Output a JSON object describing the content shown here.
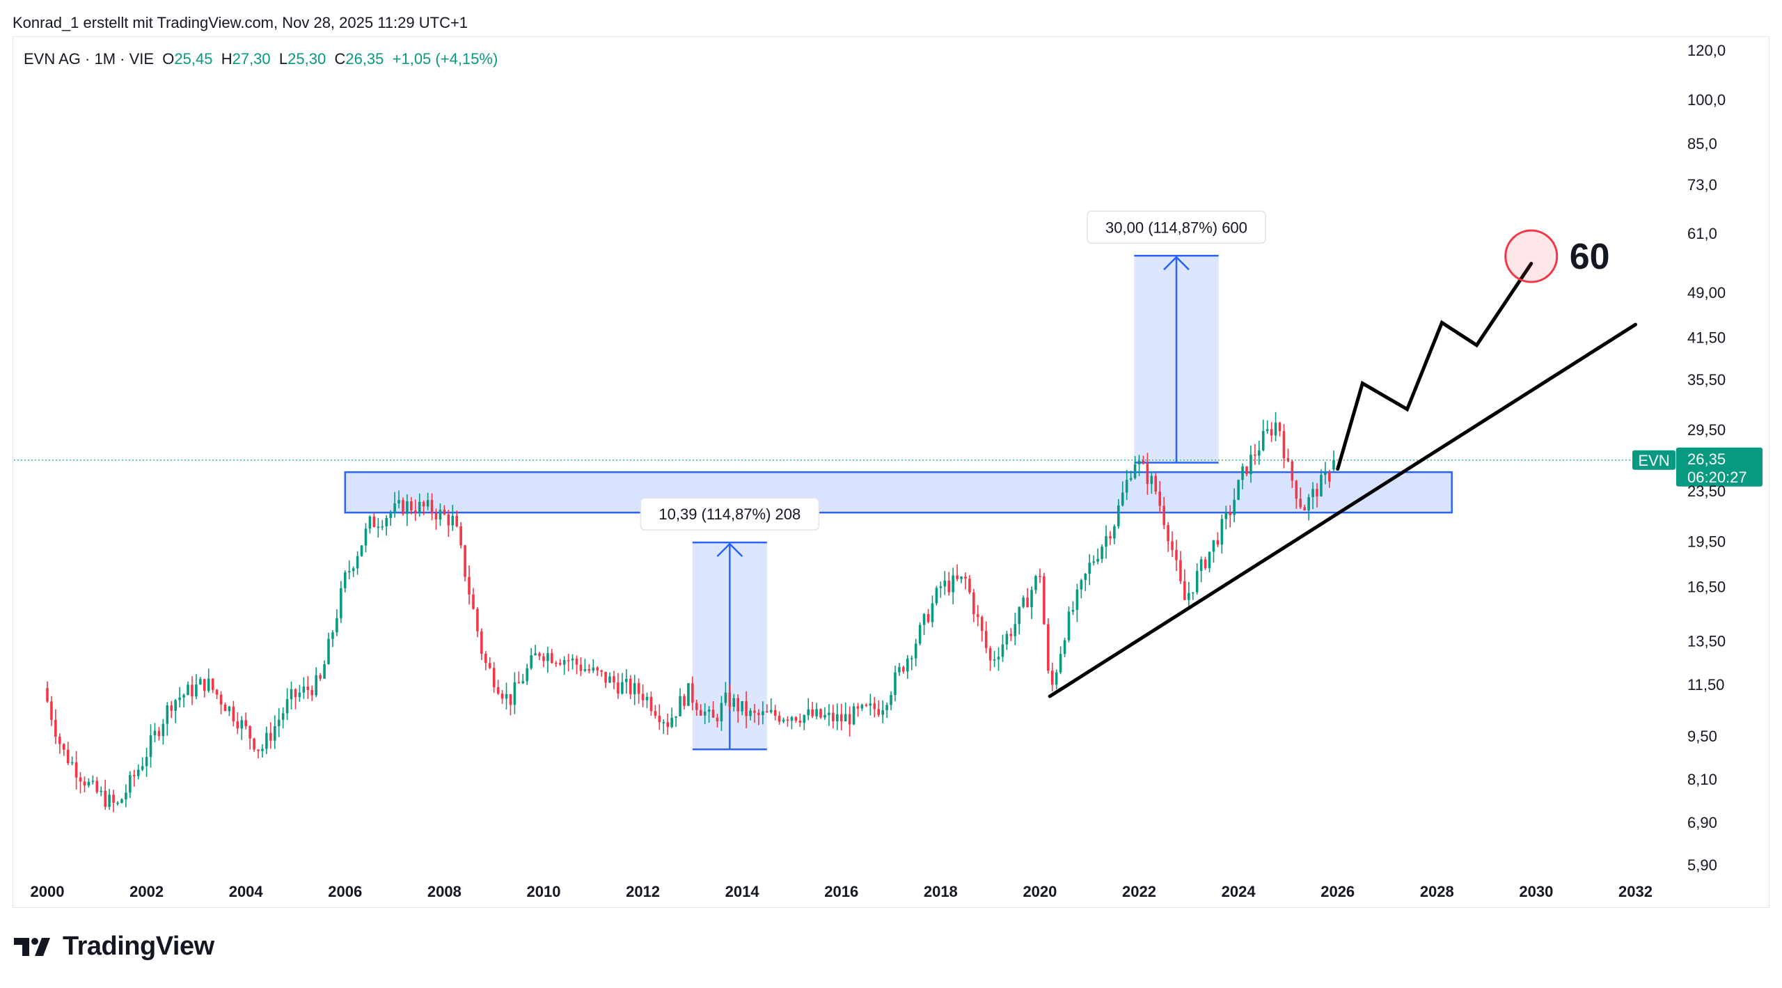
{
  "header": {
    "attribution": "Konrad_1 erstellt mit TradingView.com, Nov 28, 2025 11:29 UTC+1"
  },
  "legend": {
    "symbol": "EVN AG · 1M · VIE",
    "open_label": "O",
    "open": "25,45",
    "high_label": "H",
    "high": "27,30",
    "low_label": "L",
    "low": "25,30",
    "close_label": "C",
    "close": "26,35",
    "change": "+1,05 (+4,15%)"
  },
  "price_tag": {
    "ticker": "EVN",
    "price": "26,35",
    "countdown": "06:20:27"
  },
  "annotations": {
    "measure_large": "30,00 (114,87%) 600",
    "measure_small": "10,39 (114,87%) 208",
    "target_label": "60"
  },
  "branding": {
    "logo_text": "TradingView"
  },
  "colors": {
    "up": "#089981",
    "down": "#f23645",
    "zone": "#2962ff",
    "grid": "#e0e3eb"
  },
  "chart_data": {
    "type": "candlestick",
    "title": "EVN AG · 1M · VIE",
    "scale": "log",
    "ylim": [
      5.5,
      125
    ],
    "xlim": [
      2000,
      2032.4
    ],
    "y_ticks": [
      {
        "v": 120,
        "label": "120,0"
      },
      {
        "v": 100,
        "label": "100,0"
      },
      {
        "v": 85,
        "label": "85,0"
      },
      {
        "v": 73,
        "label": "73,0"
      },
      {
        "v": 61,
        "label": "61,0"
      },
      {
        "v": 49,
        "label": "49,00"
      },
      {
        "v": 41.5,
        "label": "41,50"
      },
      {
        "v": 35.5,
        "label": "35,50"
      },
      {
        "v": 29.5,
        "label": "29,50"
      },
      {
        "v": 23.5,
        "label": "23,50"
      },
      {
        "v": 19.5,
        "label": "19,50"
      },
      {
        "v": 16.5,
        "label": "16,50"
      },
      {
        "v": 13.5,
        "label": "13,50"
      },
      {
        "v": 11.5,
        "label": "11,50"
      },
      {
        "v": 9.5,
        "label": "9,50"
      },
      {
        "v": 8.1,
        "label": "8,10"
      },
      {
        "v": 6.9,
        "label": "6,90"
      },
      {
        "v": 5.9,
        "label": "5,90"
      }
    ],
    "x_ticks": [
      "2000",
      "2002",
      "2004",
      "2006",
      "2008",
      "2010",
      "2012",
      "2014",
      "2016",
      "2018",
      "2020",
      "2022",
      "2024",
      "2026",
      "2028",
      "2030",
      "2032"
    ],
    "anchor_closes": [
      [
        2000.0,
        10.8
      ],
      [
        2000.3,
        9.0
      ],
      [
        2000.9,
        7.8
      ],
      [
        2001.4,
        7.3
      ],
      [
        2001.9,
        8.6
      ],
      [
        2002.5,
        10.8
      ],
      [
        2003.2,
        11.6
      ],
      [
        2003.8,
        10.2
      ],
      [
        2004.3,
        9.0
      ],
      [
        2004.9,
        10.9
      ],
      [
        2005.5,
        11.6
      ],
      [
        2006.0,
        17.0
      ],
      [
        2006.5,
        20.8
      ],
      [
        2007.2,
        22.3
      ],
      [
        2007.7,
        22.0
      ],
      [
        2008.2,
        21.0
      ],
      [
        2008.8,
        12.5
      ],
      [
        2009.3,
        10.8
      ],
      [
        2009.9,
        13.0
      ],
      [
        2010.5,
        12.6
      ],
      [
        2011.0,
        12.0
      ],
      [
        2011.5,
        11.5
      ],
      [
        2012.0,
        11.1
      ],
      [
        2012.5,
        10.0
      ],
      [
        2012.9,
        11.2
      ],
      [
        2013.4,
        10.0
      ],
      [
        2013.7,
        10.9
      ],
      [
        2014.2,
        10.2
      ],
      [
        2015.0,
        10.3
      ],
      [
        2016.0,
        10.1
      ],
      [
        2016.8,
        10.6
      ],
      [
        2017.5,
        13.5
      ],
      [
        2018.0,
        16.5
      ],
      [
        2018.5,
        16.9
      ],
      [
        2019.0,
        12.5
      ],
      [
        2019.5,
        14.4
      ],
      [
        2020.0,
        17.4
      ],
      [
        2020.2,
        11.0
      ],
      [
        2020.5,
        14.0
      ],
      [
        2021.0,
        17.8
      ],
      [
        2021.5,
        21.0
      ],
      [
        2021.9,
        26.5
      ],
      [
        2022.3,
        24.0
      ],
      [
        2022.6,
        20.0
      ],
      [
        2022.9,
        15.6
      ],
      [
        2023.3,
        18.0
      ],
      [
        2023.8,
        21.5
      ],
      [
        2024.1,
        25.2
      ],
      [
        2024.5,
        28.5
      ],
      [
        2024.8,
        30.5
      ],
      [
        2025.0,
        25.5
      ],
      [
        2025.3,
        22.0
      ],
      [
        2025.6,
        23.8
      ],
      [
        2025.9,
        25.3
      ],
      [
        2025.95,
        26.35
      ]
    ],
    "last_candle": {
      "open": 25.45,
      "high": 27.3,
      "low": 25.3,
      "close": 26.35
    },
    "last_price": 26.35,
    "resistance_zone": {
      "x": [
        2006.0,
        2028.3
      ],
      "y": [
        21.7,
        25.2
      ]
    },
    "trendline": {
      "x": [
        2020.2,
        2032.0
      ],
      "y": [
        11.0,
        43.5
      ]
    },
    "projection_path": [
      [
        2026.0,
        25.5
      ],
      [
        2026.5,
        35.0
      ],
      [
        2027.4,
        31.8
      ],
      [
        2028.1,
        43.8
      ],
      [
        2028.8,
        40.3
      ],
      [
        2029.9,
        54.5
      ]
    ],
    "target_circle": {
      "x": 2029.9,
      "y": 56.0
    },
    "measure_large": {
      "x": [
        2021.9,
        2023.6
      ],
      "y": [
        26.1,
        56.1
      ]
    },
    "measure_small": {
      "x": [
        2013.0,
        2014.5
      ],
      "y": [
        9.04,
        19.43
      ]
    }
  }
}
